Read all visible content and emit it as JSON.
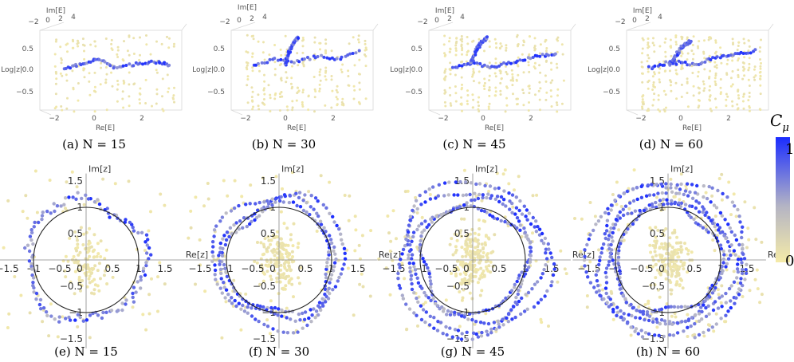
{
  "chart_data": [
    {
      "type": "scatter",
      "panel": "a",
      "kind": "3d",
      "caption": "(a) N = 15",
      "axes": {
        "x": "Re[E]",
        "y": "Im[E]",
        "z": "Log|z|"
      },
      "x_ticks": [
        "−2",
        "0",
        "2"
      ],
      "y_ticks": [
        "−2",
        "0",
        "2",
        "4"
      ],
      "z_ticks": [
        "0.5",
        "0.0",
        "−0.5"
      ],
      "xlim": [
        -2,
        4
      ],
      "zlim": [
        -0.7,
        0.7
      ],
      "blue_branches": [
        [
          [
            -1.4,
            0.05
          ],
          [
            -0.6,
            0.1
          ],
          [
            0.2,
            0.2
          ],
          [
            1.0,
            0.05
          ],
          [
            2.0,
            0.1
          ],
          [
            3.0,
            0.15
          ],
          [
            3.6,
            0.1
          ]
        ]
      ],
      "n_blue": 55,
      "n_yellow": 150
    },
    {
      "type": "scatter",
      "panel": "b",
      "kind": "3d",
      "caption": "(b) N = 30",
      "axes": {
        "x": "Re[E]",
        "y": "Im[E]",
        "z": "Log|z|"
      },
      "x_ticks": [
        "−2",
        "0",
        "2"
      ],
      "y_ticks": [
        "−2",
        "0",
        "2",
        "4"
      ],
      "z_ticks": [
        "0.5",
        "0.0",
        "−0.5"
      ],
      "xlim": [
        -2,
        4
      ],
      "zlim": [
        -0.7,
        0.7
      ],
      "blue_branches": [
        [
          [
            -1.5,
            0.1
          ],
          [
            -0.5,
            0.2
          ],
          [
            0.5,
            0.15
          ],
          [
            1.5,
            0.25
          ],
          [
            2.5,
            0.2
          ],
          [
            3.5,
            0.35
          ]
        ],
        [
          [
            0.0,
            0.1
          ],
          [
            0.3,
            0.45
          ],
          [
            0.6,
            0.6
          ]
        ]
      ],
      "n_blue": 80,
      "n_yellow": 200
    },
    {
      "type": "scatter",
      "panel": "c",
      "kind": "3d",
      "caption": "(c) N = 45",
      "axes": {
        "x": "Re[E]",
        "y": "Im[E]",
        "z": "Log|z|"
      },
      "x_ticks": [
        "−2",
        "0",
        "2"
      ],
      "y_ticks": [
        "−2",
        "0",
        "2",
        "4"
      ],
      "z_ticks": [
        "0.5",
        "0.0",
        "−0.5"
      ],
      "xlim": [
        -2,
        4
      ],
      "zlim": [
        -0.7,
        0.7
      ],
      "blue_branches": [
        [
          [
            -1.4,
            0.05
          ],
          [
            -0.5,
            0.15
          ],
          [
            0.5,
            0.05
          ],
          [
            1.5,
            0.15
          ],
          [
            2.5,
            0.25
          ],
          [
            3.5,
            0.3
          ]
        ],
        [
          [
            -0.6,
            0.1
          ],
          [
            -0.2,
            0.45
          ],
          [
            0.2,
            0.6
          ]
        ]
      ],
      "n_blue": 90,
      "n_yellow": 260
    },
    {
      "type": "scatter",
      "panel": "d",
      "kind": "3d",
      "caption": "(d) N = 60",
      "axes": {
        "x": "Re[E]",
        "y": "Im[E]",
        "z": "Log|z|"
      },
      "x_ticks": [
        "−2",
        "0",
        "2"
      ],
      "y_ticks": [
        "−2",
        "0",
        "2",
        "4"
      ],
      "z_ticks": [
        "0.5",
        "0.0",
        "−0.5"
      ],
      "xlim": [
        -2,
        4
      ],
      "zlim": [
        -0.7,
        0.7
      ],
      "blue_branches": [
        [
          [
            -1.5,
            0.05
          ],
          [
            -0.5,
            0.15
          ],
          [
            0.5,
            0.1
          ],
          [
            1.5,
            0.2
          ],
          [
            2.5,
            0.3
          ],
          [
            3.6,
            0.35
          ]
        ],
        [
          [
            -0.5,
            0.1
          ],
          [
            0.0,
            0.4
          ],
          [
            0.5,
            0.55
          ]
        ]
      ],
      "n_blue": 100,
      "n_yellow": 300
    },
    {
      "type": "scatter",
      "panel": "e",
      "kind": "2d",
      "caption": "(e) N = 15",
      "axes": {
        "x": "Re[z]",
        "y": "Im[z]"
      },
      "x_ticks": [
        "−1.5",
        "−1",
        "−0.5",
        "0",
        "0.5",
        "1",
        "1.5"
      ],
      "y_ticks": [
        "1.5",
        "1",
        "0.5",
        "−0.5",
        "−1",
        "−1.5"
      ],
      "xlim": [
        -1.9,
        2.0
      ],
      "ylim": [
        -1.9,
        1.9
      ],
      "unit_circle_radius": 1,
      "ring_radii": [
        1.12
      ],
      "n_blue": 120,
      "n_yellow": 180
    },
    {
      "type": "scatter",
      "panel": "f",
      "kind": "2d",
      "caption": "(f) N = 30",
      "axes": {
        "x": "Re[z]",
        "y": "Im[z]"
      },
      "x_ticks": [
        "−1.5",
        "−1",
        "−0.5",
        "0",
        "0.5",
        "1",
        "1.5"
      ],
      "y_ticks": [
        "1.5",
        "1",
        "0.5",
        "−0.5",
        "−1",
        "−1.5"
      ],
      "xlim": [
        -1.9,
        2.0
      ],
      "ylim": [
        -1.9,
        1.9
      ],
      "unit_circle_radius": 1,
      "ring_radii": [
        1.0,
        1.1,
        1.25
      ],
      "n_blue": 260,
      "n_yellow": 260
    },
    {
      "type": "scatter",
      "panel": "g",
      "kind": "2d",
      "caption": "(g) N = 45",
      "axes": {
        "x": "Re[z]",
        "y": "Im[z]"
      },
      "x_ticks": [
        "−1.5",
        "−1",
        "−0.5",
        "0",
        "0.5",
        "1",
        "1.5"
      ],
      "y_ticks": [
        "1.5",
        "1",
        "0.5",
        "−0.5",
        "−1",
        "−1.5"
      ],
      "xlim": [
        -1.9,
        2.0
      ],
      "ylim": [
        -1.9,
        1.9
      ],
      "unit_circle_radius": 1,
      "ring_radii": [
        1.0,
        1.12,
        1.3,
        1.45
      ],
      "n_blue": 380,
      "n_yellow": 300
    },
    {
      "type": "scatter",
      "panel": "h",
      "kind": "2d",
      "caption": "(h) N = 60",
      "axes": {
        "x": "Re[z]",
        "y": "Im[z]"
      },
      "x_ticks": [
        "−1.5",
        "−1",
        "−0.5",
        "0",
        "0.5",
        "1",
        "1.5"
      ],
      "y_ticks": [
        "1.5",
        "1",
        "0.5",
        "−0.5",
        "−1",
        "−1.5"
      ],
      "xlim": [
        -1.9,
        2.0
      ],
      "ylim": [
        -1.9,
        1.9
      ],
      "unit_circle_radius": 1,
      "ring_radii": [
        1.0,
        1.1,
        1.22,
        1.38,
        1.5
      ],
      "n_blue": 480,
      "n_yellow": 320
    }
  ],
  "colorbar": {
    "title": "Cμ",
    "title_main": "C",
    "title_sub": "μ",
    "range": [
      0,
      1
    ],
    "tick_labels": [
      "1",
      "0"
    ],
    "colors": {
      "high": "#1a2cff",
      "mid": "#b8b8c8",
      "low": "#f5eba8"
    }
  }
}
